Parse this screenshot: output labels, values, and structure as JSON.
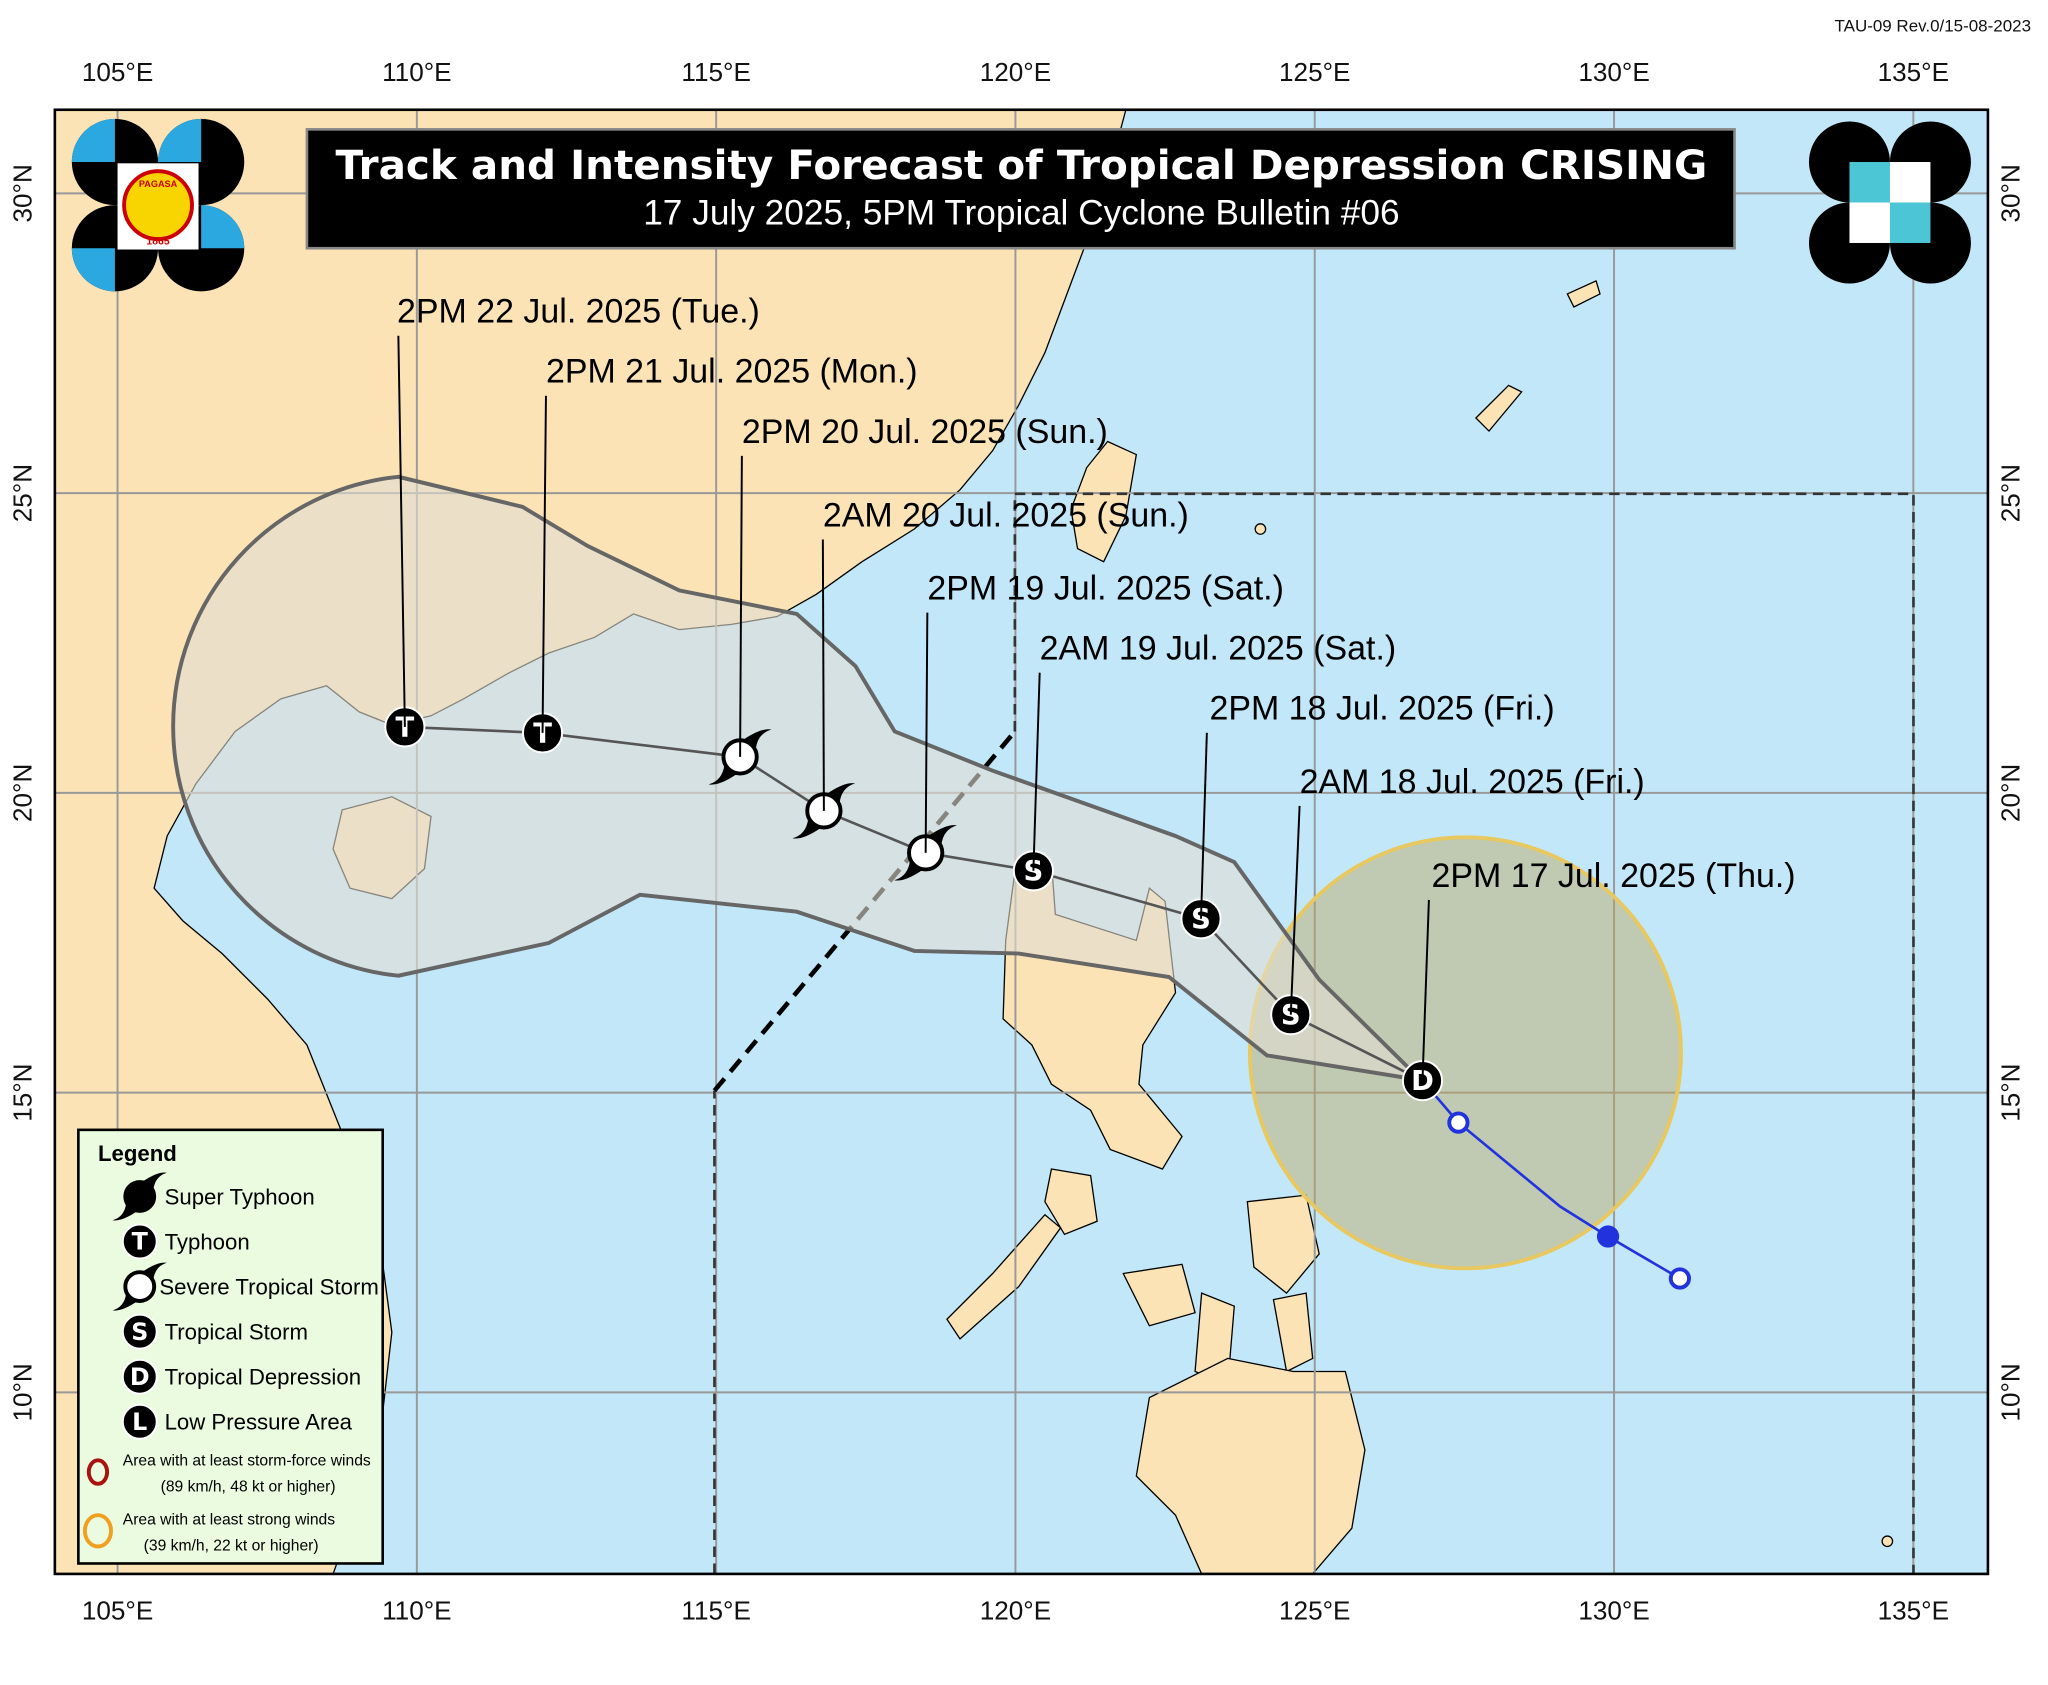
{
  "form_code": "TAU-09 Rev.0/15-08-2023",
  "title": "Track and Intensity Forecast of Tropical Depression CRISING",
  "subtitle": "17 July 2025, 5PM Tropical Cyclone Bulletin #06",
  "logo_left_text": [
    "PAGASA",
    "1865"
  ],
  "axes": {
    "lon_ticks": [
      105,
      110,
      115,
      120,
      125,
      130,
      135
    ],
    "lon_labels": [
      "105°E",
      "110°E",
      "115°E",
      "120°E",
      "125°E",
      "130°E",
      "135°E"
    ],
    "lat_ticks": [
      10,
      15,
      20,
      25,
      30
    ],
    "lat_labels": [
      "10°N",
      "15°N",
      "20°N",
      "25°N",
      "30°N"
    ]
  },
  "forecast_track": [
    {
      "time": "2PM 17 Jul. 2025 (Thu.)",
      "category": "D",
      "lon": 126.8,
      "lat": 15.2
    },
    {
      "time": "2AM 18 Jul. 2025 (Fri.)",
      "category": "S",
      "lon": 124.6,
      "lat": 16.3
    },
    {
      "time": "2PM 18 Jul. 2025 (Fri.)",
      "category": "S",
      "lon": 123.1,
      "lat": 17.9
    },
    {
      "time": "2AM 19 Jul. 2025 (Sat.)",
      "category": "S",
      "lon": 120.3,
      "lat": 18.7
    },
    {
      "time": "2PM 19 Jul. 2025 (Sat.)",
      "category": "STS",
      "lon": 118.5,
      "lat": 19.0
    },
    {
      "time": "2AM 20 Jul. 2025 (Sun.)",
      "category": "STS",
      "lon": 116.8,
      "lat": 19.7
    },
    {
      "time": "2PM 20 Jul. 2025 (Sun.)",
      "category": "STS",
      "lon": 115.4,
      "lat": 20.6
    },
    {
      "time": "2PM 21 Jul. 2025 (Mon.)",
      "category": "T",
      "lon": 112.1,
      "lat": 21.0
    },
    {
      "time": "2PM 22 Jul. 2025 (Tue.)",
      "category": "T",
      "lon": 109.8,
      "lat": 21.1
    }
  ],
  "past_track": [
    {
      "lon": 131.1,
      "lat": 11.9,
      "marker": "open"
    },
    {
      "lon": 129.9,
      "lat": 12.6,
      "marker": "filled"
    },
    {
      "lon": 129.1,
      "lat": 13.1,
      "marker": "none"
    },
    {
      "lon": 127.4,
      "lat": 14.5,
      "marker": "open"
    },
    {
      "lon": 126.8,
      "lat": 15.2,
      "marker": "none"
    }
  ],
  "colors": {
    "land": "#fbe3b6",
    "sea": "#c2e7f9",
    "cone_fill": "#e6e2d6",
    "cone_stroke": "#666666",
    "strong_wind_area": "#c9b676",
    "past_track": "#2233dd",
    "legend_bg": "#eafbe0",
    "storm_force": "#aa1111",
    "strong_winds": "#f0a020"
  },
  "legend": {
    "title": "Legend",
    "items": [
      {
        "symbol": "super-typhoon",
        "label": "Super Typhoon"
      },
      {
        "symbol": "T",
        "label": "Typhoon"
      },
      {
        "symbol": "STS",
        "label": "Severe Tropical Storm"
      },
      {
        "symbol": "S",
        "label": "Tropical Storm"
      },
      {
        "symbol": "D",
        "label": "Tropical Depression"
      },
      {
        "symbol": "L",
        "label": "Low Pressure Area"
      }
    ],
    "areas": [
      {
        "line1": "Area with at least storm-force winds",
        "line2": "(89 km/h, 48 kt or higher)"
      },
      {
        "line1": "Area with at least strong winds",
        "line2": "(39 km/h, 22 kt or higher)"
      }
    ]
  }
}
